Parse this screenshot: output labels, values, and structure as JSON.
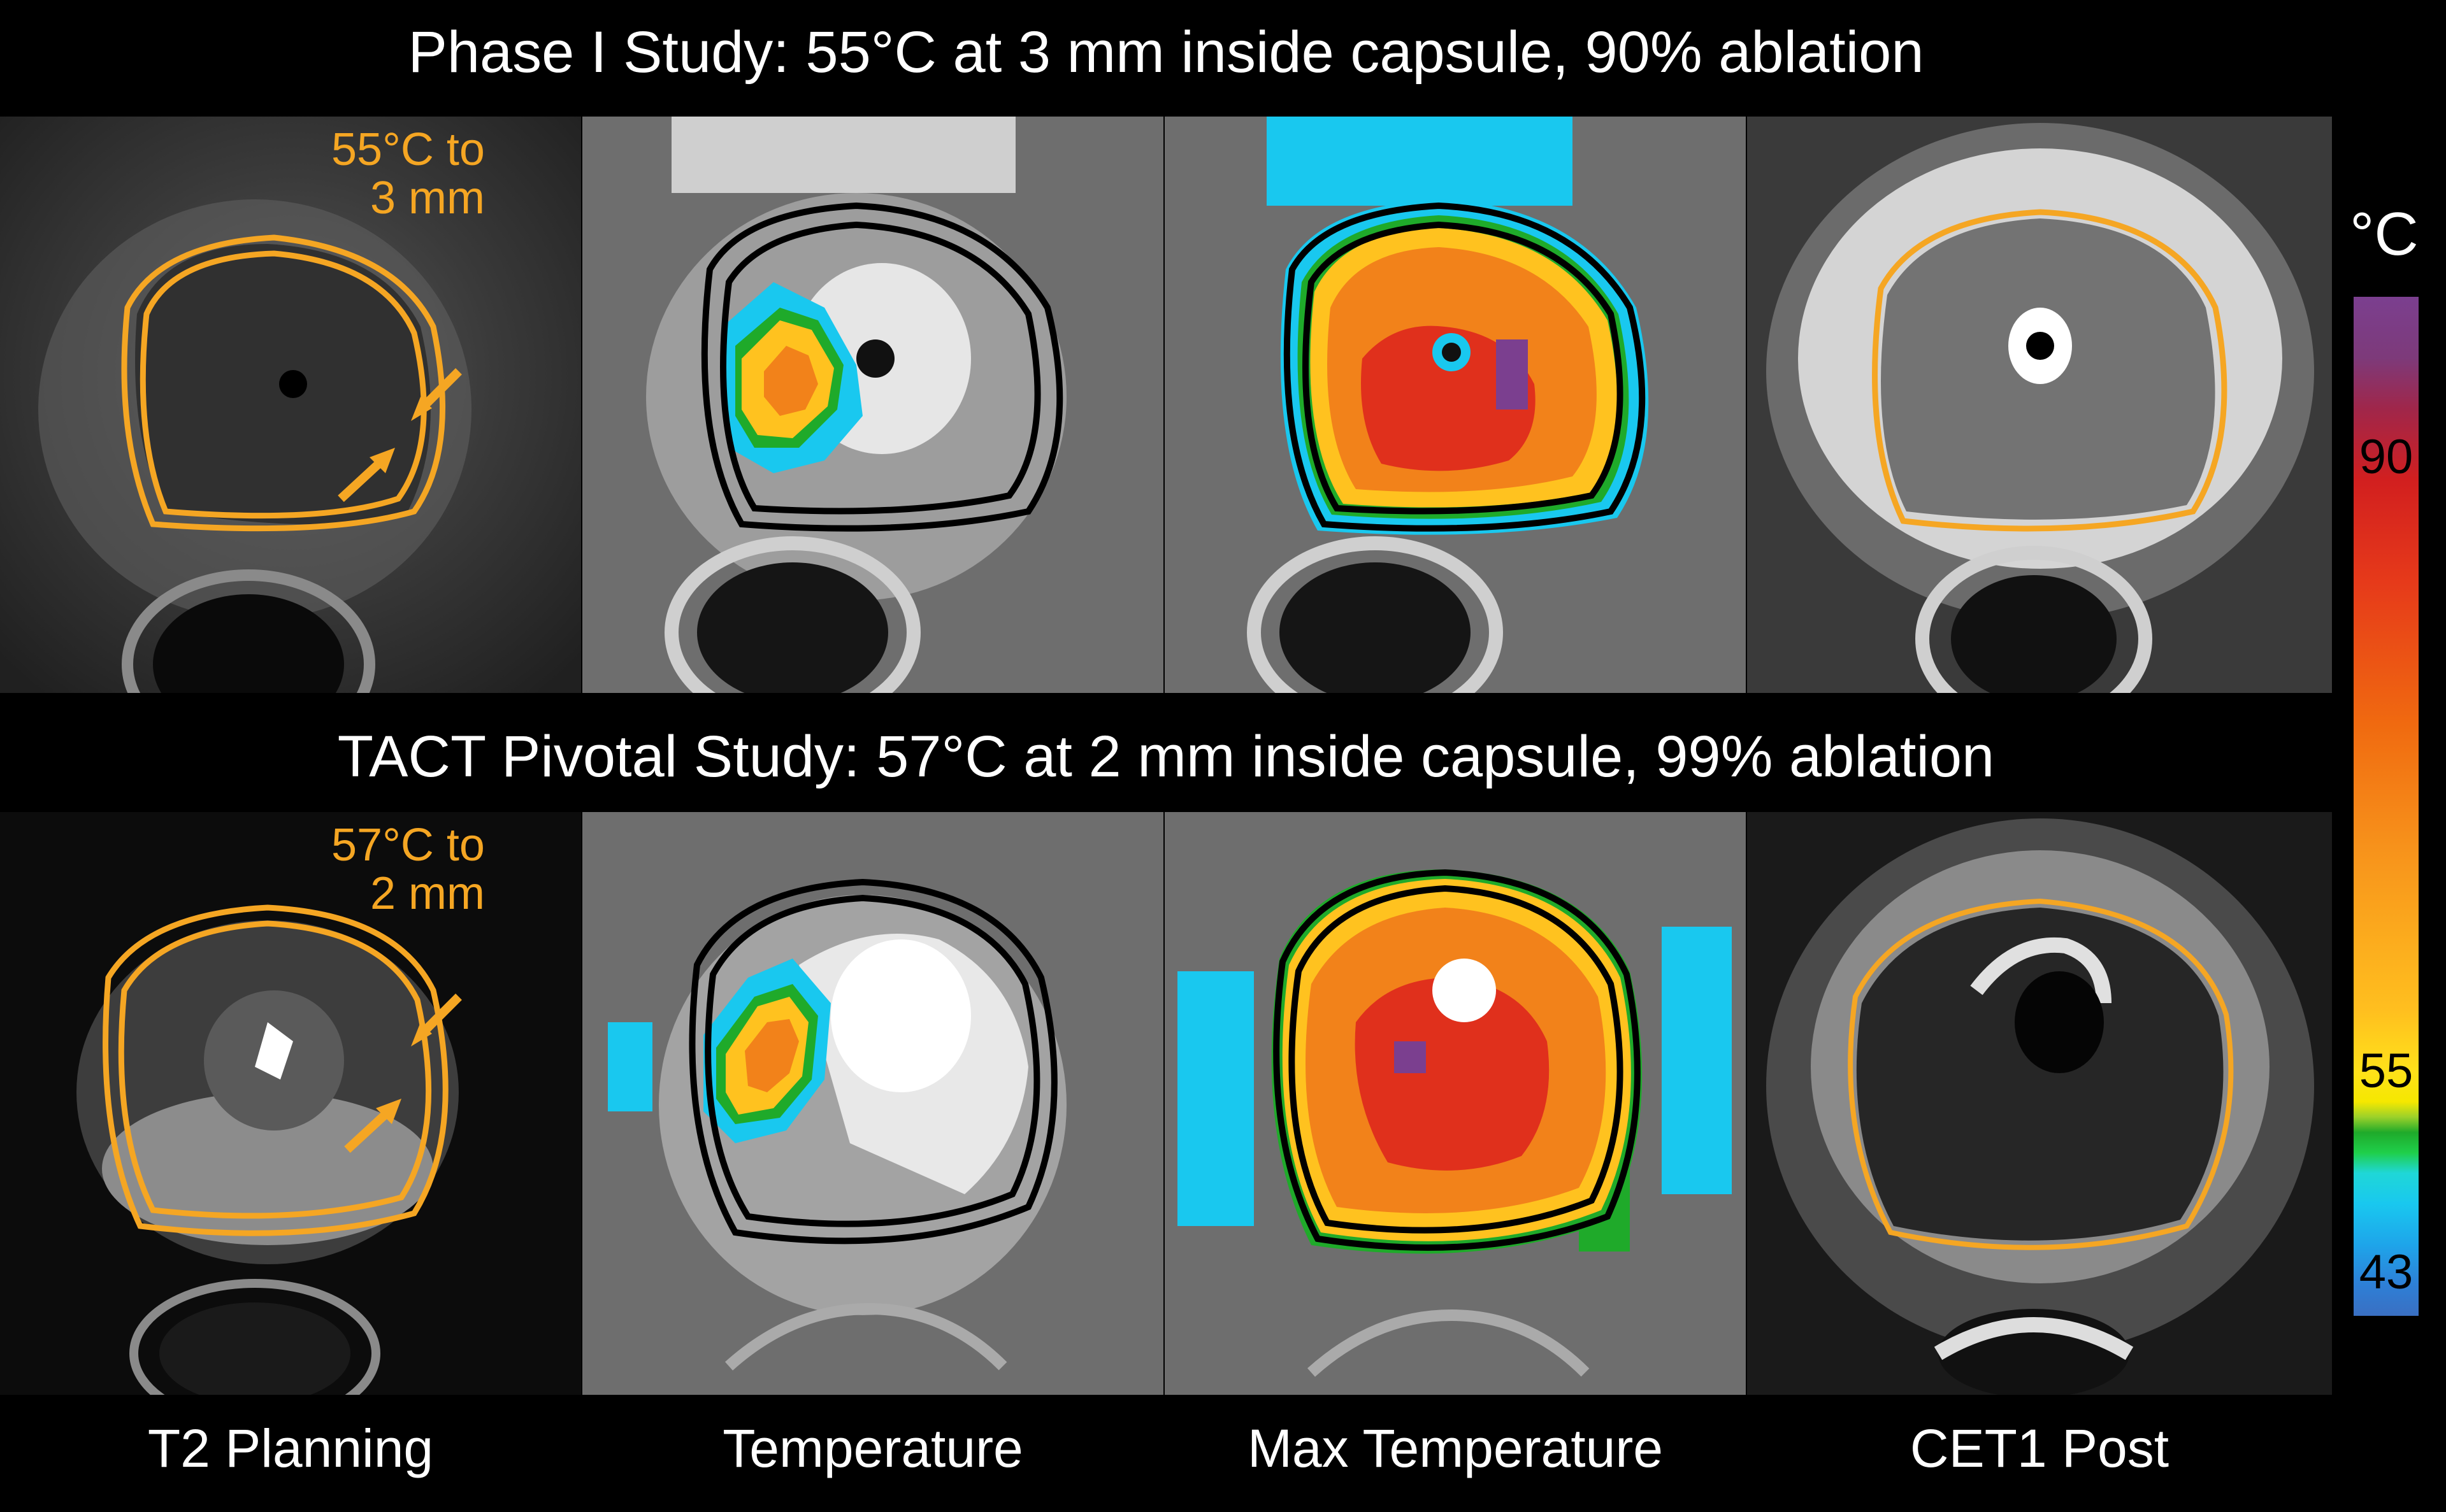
{
  "titles": {
    "row1": "Phase I Study:  55°C at 3 mm inside capsule, 90% ablation",
    "row2": "TACT Pivotal Study:  57°C at 2 mm inside capsule, 99% ablation"
  },
  "annotations": {
    "row1_line1": "55°C to",
    "row1_line2": "3 mm",
    "row2_line1": "57°C to",
    "row2_line2": "2 mm"
  },
  "column_labels": [
    "T2 Planning",
    "Temperature",
    "Max Temperature",
    "CET1 Post"
  ],
  "colorbar": {
    "unit": "°C",
    "ticks": [
      "90",
      "55",
      "43"
    ]
  },
  "colors": {
    "contour_orange": "#f5a623",
    "contour_black": "#000000",
    "contour_yellow": "#f3e600",
    "heat_red": "#e0301c",
    "heat_orange": "#f2821a",
    "heat_yellow": "#ffc21f",
    "heat_green": "#1faa2a",
    "heat_cyan": "#19c8ef"
  }
}
